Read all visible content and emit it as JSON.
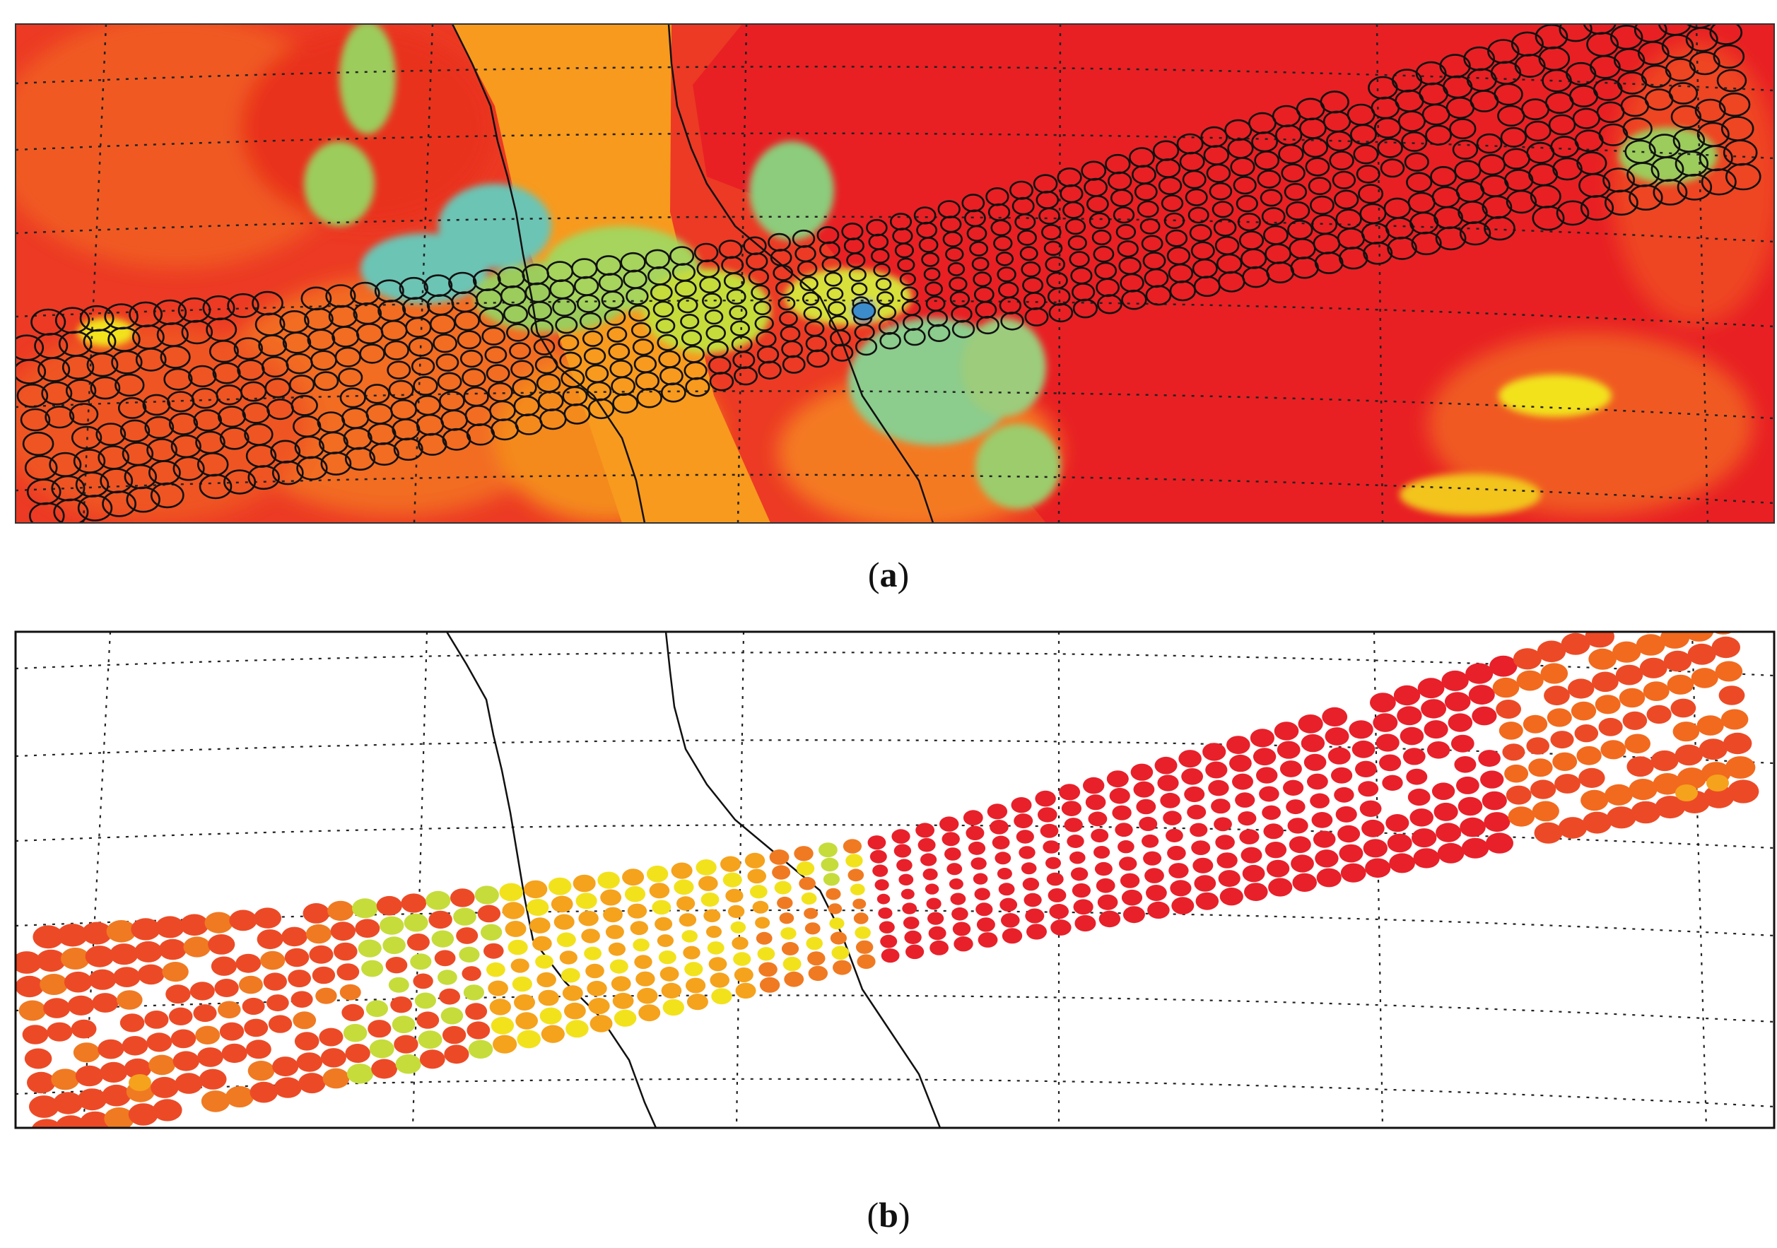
{
  "figure": {
    "panels": [
      {
        "id": "a",
        "caption_open": "(",
        "caption_letter": "a",
        "caption_close": ")",
        "background": "satellite-brightness-temperature-image",
        "footprint_style": "outline",
        "footprint_color": "#000000"
      },
      {
        "id": "b",
        "caption_open": "(",
        "caption_letter": "b",
        "caption_close": ")",
        "background": "white",
        "footprint_style": "filled"
      }
    ],
    "colors": {
      "red": "#e8202a",
      "red_orange": "#ec4a26",
      "orange": "#f07a22",
      "amber": "#f5a21c",
      "yellow": "#f2e21c",
      "yellow_green": "#c6dc3a",
      "green": "#9ccc5c",
      "cyan": "#5ec6c8",
      "blue": "#3c8ccc",
      "land_orange": "#f79a1e",
      "ocean_red": "#ea2222",
      "warm_orange": "#f26a1e"
    }
  }
}
